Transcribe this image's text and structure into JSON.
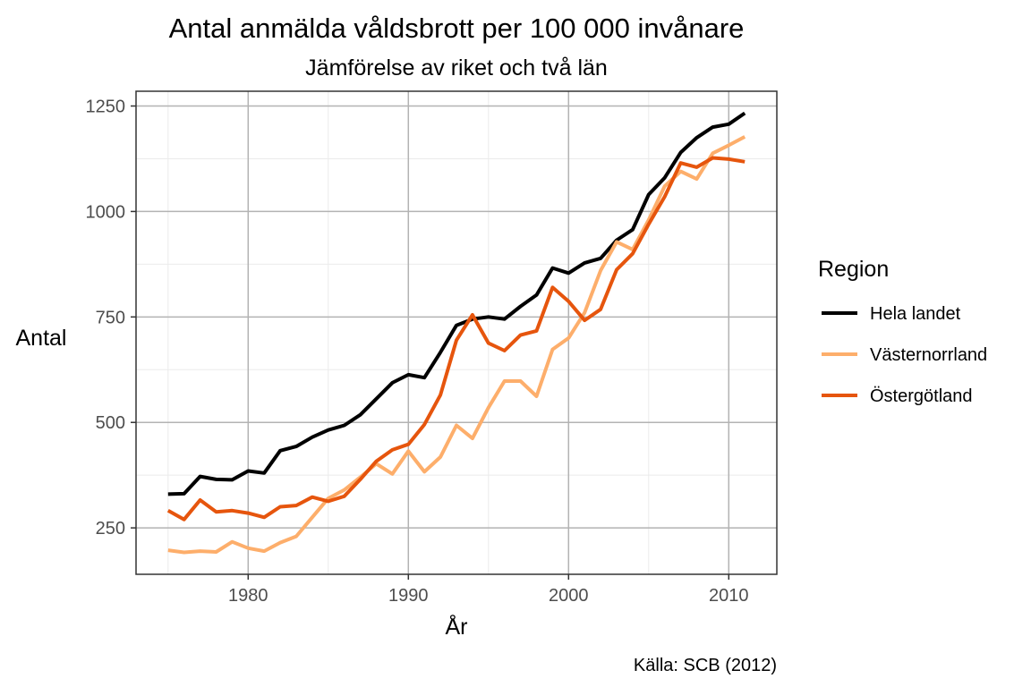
{
  "chart_data": {
    "type": "line",
    "title": "Antal anmälda våldsbrott per 100 000 invånare",
    "subtitle": "Jämförelse av riket och två län",
    "xlabel": "År",
    "ylabel": "Antal",
    "caption": "Källa: SCB (2012)",
    "xlim": [
      1973,
      2013
    ],
    "ylim": [
      140,
      1285
    ],
    "x_ticks": [
      1980,
      1990,
      2000,
      2010
    ],
    "y_ticks": [
      250,
      500,
      750,
      1000,
      1250
    ],
    "grid": true,
    "legend": {
      "title": "Region",
      "position": "right"
    },
    "x": [
      1975,
      1976,
      1977,
      1978,
      1979,
      1980,
      1981,
      1982,
      1983,
      1984,
      1985,
      1986,
      1987,
      1988,
      1989,
      1990,
      1991,
      1992,
      1993,
      1994,
      1995,
      1996,
      1997,
      1998,
      1999,
      2000,
      2001,
      2002,
      2003,
      2004,
      2005,
      2006,
      2007,
      2008,
      2009,
      2010,
      2011
    ],
    "series": [
      {
        "name": "Hela landet",
        "color": "#000000",
        "values": [
          330,
          331,
          372,
          365,
          364,
          385,
          380,
          433,
          443,
          465,
          482,
          493,
          518,
          556,
          594,
          613,
          606,
          666,
          730,
          745,
          750,
          745,
          775,
          802,
          866,
          854,
          878,
          889,
          932,
          957,
          1040,
          1080,
          1140,
          1175,
          1200,
          1207,
          1233
        ]
      },
      {
        "name": "Västernorrland",
        "color": "#fdae6b",
        "values": [
          197,
          192,
          195,
          193,
          217,
          202,
          195,
          215,
          230,
          275,
          320,
          340,
          370,
          402,
          378,
          432,
          383,
          418,
          493,
          462,
          535,
          598,
          598,
          562,
          673,
          700,
          760,
          860,
          928,
          910,
          980,
          1060,
          1095,
          1077,
          1138,
          1157,
          1177
        ]
      },
      {
        "name": "Östergötland",
        "color": "#e6550d",
        "values": [
          291,
          270,
          316,
          288,
          291,
          285,
          275,
          300,
          303,
          323,
          313,
          325,
          365,
          408,
          435,
          448,
          495,
          565,
          695,
          755,
          688,
          670,
          707,
          717,
          820,
          787,
          742,
          768,
          862,
          900,
          970,
          1035,
          1115,
          1105,
          1127,
          1124,
          1118
        ]
      }
    ]
  }
}
